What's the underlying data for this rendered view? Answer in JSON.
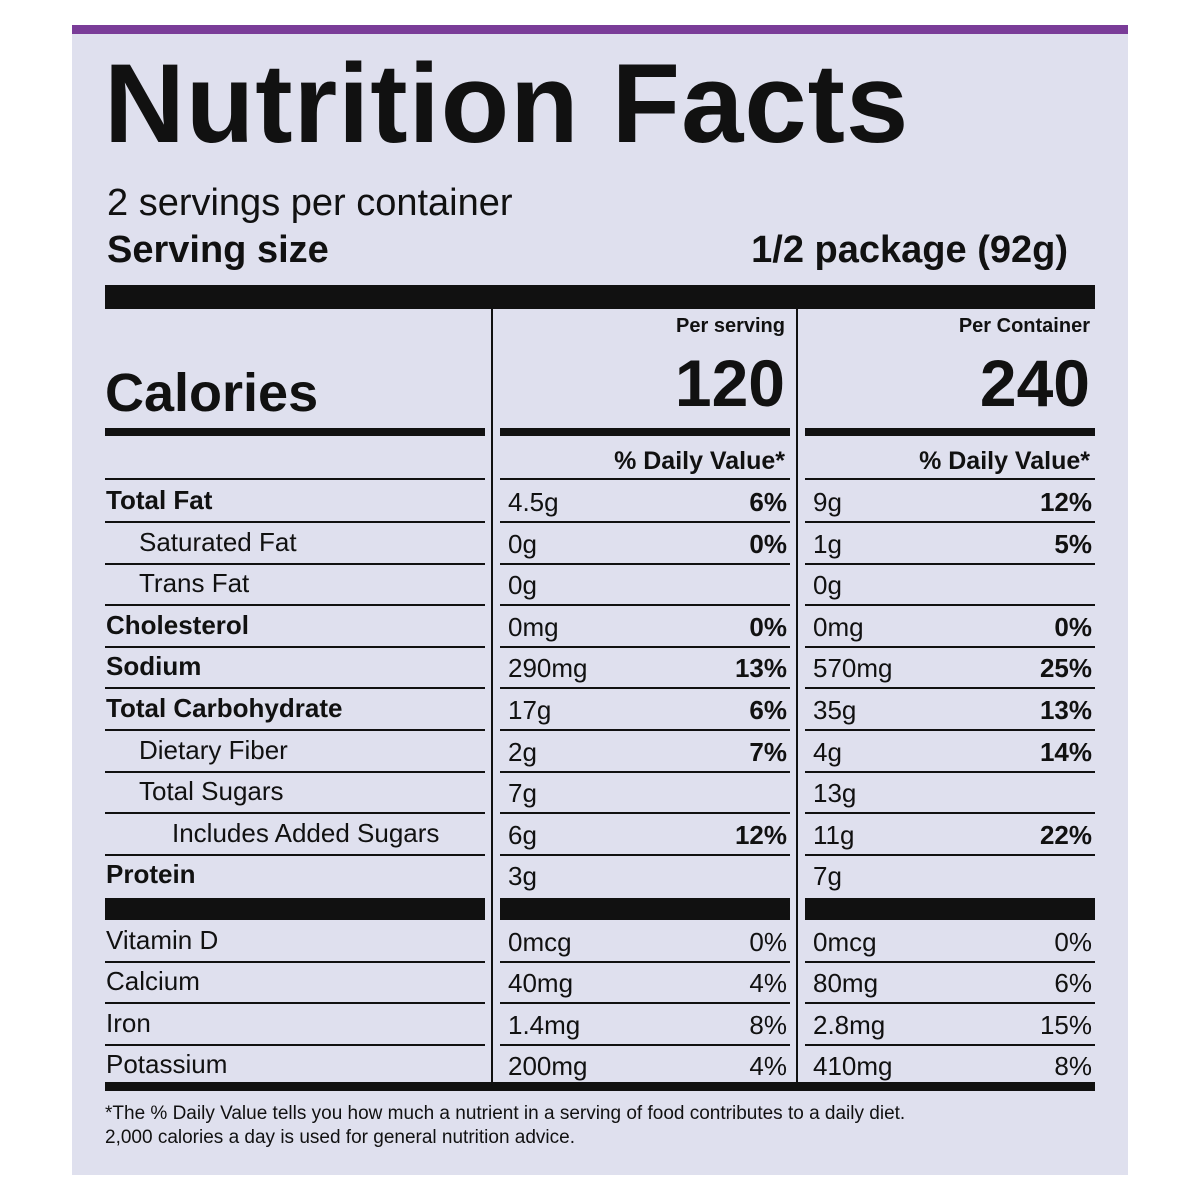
{
  "title": "Nutrition Facts",
  "servings": "2 servings per container",
  "serving_size": {
    "label": "Serving size",
    "value": "1/2 package (92g)"
  },
  "calories": {
    "label": "Calories",
    "columns": [
      {
        "header": "Per serving",
        "value": "120",
        "dv_header": "% Daily Value*"
      },
      {
        "header": "Per Container",
        "value": "240",
        "dv_header": "% Daily Value*"
      }
    ]
  },
  "nutrients": [
    {
      "name": "Total Fat",
      "bold": true,
      "indent": 0,
      "values": [
        [
          "4.5g",
          "6%"
        ],
        [
          "9g",
          "12%"
        ]
      ]
    },
    {
      "name": "Saturated Fat",
      "bold": false,
      "indent": 1,
      "values": [
        [
          "0g",
          "0%"
        ],
        [
          "1g",
          "5%"
        ]
      ]
    },
    {
      "name": "Trans Fat",
      "bold": false,
      "indent": 1,
      "values": [
        [
          "0g"
        ],
        [
          "0g"
        ]
      ]
    },
    {
      "name": "Cholesterol",
      "bold": true,
      "indent": 0,
      "values": [
        [
          "0mg",
          "0%"
        ],
        [
          "0mg",
          "0%"
        ]
      ]
    },
    {
      "name": "Sodium",
      "bold": true,
      "indent": 0,
      "values": [
        [
          "290mg",
          "13%"
        ],
        [
          "570mg",
          "25%"
        ]
      ]
    },
    {
      "name": "Total Carbohydrate",
      "bold": true,
      "indent": 0,
      "values": [
        [
          "17g",
          "6%"
        ],
        [
          "35g",
          "13%"
        ]
      ]
    },
    {
      "name": "Dietary Fiber",
      "bold": false,
      "indent": 1,
      "values": [
        [
          "2g",
          "7%"
        ],
        [
          "4g",
          "14%"
        ]
      ]
    },
    {
      "name": "Total Sugars",
      "bold": false,
      "indent": 1,
      "values": [
        [
          "7g"
        ],
        [
          "13g"
        ]
      ]
    },
    {
      "name": "Includes Added Sugars",
      "bold": false,
      "indent": 2,
      "values": [
        [
          "6g",
          "12%"
        ],
        [
          "11g",
          "22%"
        ]
      ]
    },
    {
      "name": "Protein",
      "bold": true,
      "indent": 0,
      "values": [
        [
          "3g"
        ],
        [
          "7g"
        ]
      ]
    }
  ],
  "vitamins": [
    {
      "name": "Vitamin D",
      "values": [
        [
          "0mcg",
          "0%"
        ],
        [
          "0mcg",
          "0%"
        ]
      ]
    },
    {
      "name": "Calcium",
      "values": [
        [
          "40mg",
          "4%"
        ],
        [
          "80mg",
          "6%"
        ]
      ]
    },
    {
      "name": "Iron",
      "values": [
        [
          "1.4mg",
          "8%"
        ],
        [
          "2.8mg",
          "15%"
        ]
      ]
    },
    {
      "name": "Potassium",
      "values": [
        [
          "200mg",
          "4%"
        ],
        [
          "410mg",
          "8%"
        ]
      ]
    }
  ],
  "footnote": [
    "*The % Daily Value tells you how much a nutrient in a serving of food contributes to a daily diet.",
    "2,000 calories a day is used for general nutrition advice."
  ]
}
